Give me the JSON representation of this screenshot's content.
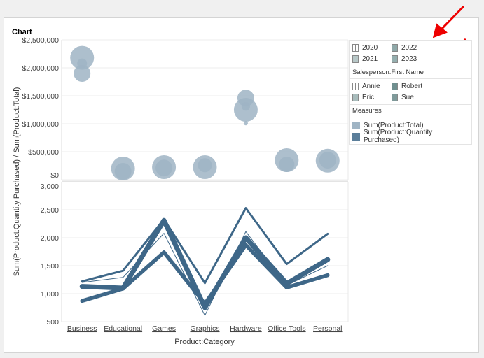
{
  "title": "Chart",
  "legend": {
    "years": [
      {
        "label": "2020",
        "fill": "#ffffff"
      },
      {
        "label": "2022",
        "fill": "#8fa8a8"
      },
      {
        "label": "2021",
        "fill": "#b7c7c7"
      },
      {
        "label": "2023",
        "fill": "#94aeae"
      }
    ],
    "salesperson_title": "Salesperson:First Name",
    "salespersons": [
      {
        "label": "Annie",
        "fill": "#ffffff"
      },
      {
        "label": "Robert",
        "fill": "#6f8f8f"
      },
      {
        "label": "Eric",
        "fill": "#a8bcbc"
      },
      {
        "label": "Sue",
        "fill": "#7f9a9a"
      }
    ],
    "measures_title": "Measures",
    "measures": [
      {
        "label": "Sum(Product:Total)",
        "color": "#9fb4c4"
      },
      {
        "label": "Sum(Product:Quantity Purchased)",
        "color": "#5b7e9a"
      }
    ]
  },
  "chart_data": [
    {
      "type": "scatter",
      "ylabel": "Sum(Product:Quantity Purchased) / Sum(Product:Total)",
      "ylim": [
        0,
        2500000
      ],
      "yticks": [
        "$0",
        "$500,000",
        "$1,000,000",
        "$1,500,000",
        "$2,000,000",
        "$2,500,000"
      ],
      "categories": [
        "Business",
        "Educational",
        "Games",
        "Graphics",
        "Hardware",
        "Office Tools",
        "Personal"
      ],
      "color": "#9fb4c4",
      "points": [
        {
          "category": "Business",
          "value": 2180000,
          "size": 17
        },
        {
          "category": "Business",
          "value": 1900000,
          "size": 12
        },
        {
          "category": "Business",
          "value": 2080000,
          "size": 7
        },
        {
          "category": "Educational",
          "value": 200000,
          "size": 17
        },
        {
          "category": "Educational",
          "value": 150000,
          "size": 12
        },
        {
          "category": "Games",
          "value": 225000,
          "size": 17
        },
        {
          "category": "Games",
          "value": 210000,
          "size": 12
        },
        {
          "category": "Graphics",
          "value": 225000,
          "size": 17
        },
        {
          "category": "Graphics",
          "value": 260000,
          "size": 10
        },
        {
          "category": "Hardware",
          "value": 1460000,
          "size": 12
        },
        {
          "category": "Hardware",
          "value": 1250000,
          "size": 17
        },
        {
          "category": "Hardware",
          "value": 1310000,
          "size": 6
        },
        {
          "category": "Hardware",
          "value": 1010000,
          "size": 3
        },
        {
          "category": "Office Tools",
          "value": 350000,
          "size": 17
        },
        {
          "category": "Office Tools",
          "value": 275000,
          "size": 11
        },
        {
          "category": "Personal",
          "value": 340000,
          "size": 17
        },
        {
          "category": "Personal",
          "value": 350000,
          "size": 12
        }
      ]
    },
    {
      "type": "line",
      "ylim": [
        500,
        3000
      ],
      "yticks": [
        "500",
        "1,000",
        "1,500",
        "2,000",
        "2,500",
        "3,000"
      ],
      "xlabel": "Product:Category",
      "categories": [
        "Business",
        "Educational",
        "Games",
        "Graphics",
        "Hardware",
        "Office Tools",
        "Personal"
      ],
      "color": "#3e6788",
      "series": [
        {
          "values": [
            1220,
            1410,
            2330,
            1190,
            2530,
            1530,
            2070
          ],
          "width": 3
        },
        {
          "values": [
            1130,
            1100,
            2310,
            750,
            2000,
            1180,
            1610
          ],
          "width": 7
        },
        {
          "values": [
            870,
            1090,
            1740,
            820,
            1870,
            1110,
            1330
          ],
          "width": 5.5
        },
        {
          "values": [
            1200,
            1290,
            2080,
            610,
            2110,
            1150,
            1500
          ],
          "width": 1
        }
      ]
    }
  ]
}
